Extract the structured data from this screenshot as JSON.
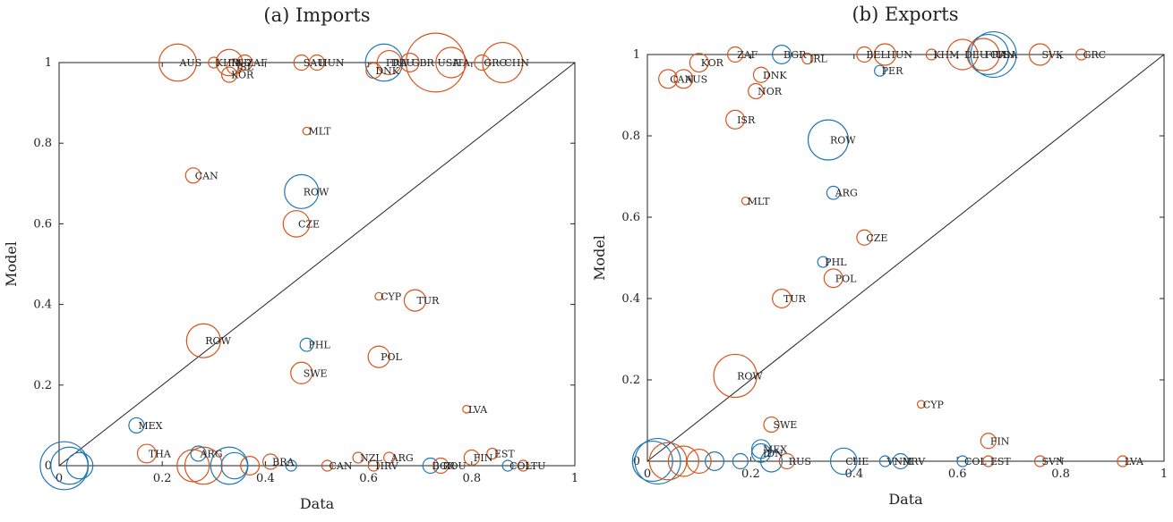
{
  "chart_data": [
    {
      "type": "scatter",
      "title": "(a) Imports",
      "xlabel": "Data",
      "ylabel": "Model",
      "xlim": [
        0,
        1
      ],
      "ylim": [
        0,
        1
      ],
      "xticks": [
        "0",
        "0.2",
        "0.4",
        "0.6",
        "0.8",
        "1"
      ],
      "yticks": [
        "0",
        "0.2",
        "0.4",
        "0.6",
        "0.8",
        "1"
      ],
      "reference_line": "y = x",
      "colors": {
        "blue": "#1f77b4",
        "orange": "#d95319"
      },
      "points": [
        {
          "label": "AUS",
          "x": 0.23,
          "y": 1.0,
          "color": "orange",
          "size": 12
        },
        {
          "label": "KHM",
          "x": 0.3,
          "y": 1.0,
          "color": "orange",
          "size": 1
        },
        {
          "label": "IND",
          "x": 0.33,
          "y": 1.0,
          "color": "orange",
          "size": 6
        },
        {
          "label": "ISL",
          "x": 0.34,
          "y": 0.99,
          "color": "orange",
          "size": 2
        },
        {
          "label": "ZAF",
          "x": 0.36,
          "y": 1.0,
          "color": "orange",
          "size": 2
        },
        {
          "label": "KOR",
          "x": 0.33,
          "y": 0.97,
          "color": "orange",
          "size": 2
        },
        {
          "label": "SAU",
          "x": 0.47,
          "y": 1.0,
          "color": "orange",
          "size": 2
        },
        {
          "label": "HUN",
          "x": 0.5,
          "y": 1.0,
          "color": "orange",
          "size": 2
        },
        {
          "label": "DNK",
          "x": 0.61,
          "y": 0.98,
          "color": "orange",
          "size": 2
        },
        {
          "label": "FRA",
          "x": 0.63,
          "y": 1.0,
          "color": "blue",
          "size": 12
        },
        {
          "label": "DEU",
          "x": 0.64,
          "y": 1.0,
          "color": "orange",
          "size": 5
        },
        {
          "label": "GBR",
          "x": 0.68,
          "y": 1.0,
          "color": "orange",
          "size": 3
        },
        {
          "label": "USA",
          "x": 0.73,
          "y": 1.0,
          "color": "orange",
          "size": 30
        },
        {
          "label": "ITA",
          "x": 0.76,
          "y": 1.0,
          "color": "orange",
          "size": 8
        },
        {
          "label": "GRC",
          "x": 0.82,
          "y": 1.0,
          "color": "orange",
          "size": 2
        },
        {
          "label": "CHN",
          "x": 0.86,
          "y": 1.0,
          "color": "orange",
          "size": 14
        },
        {
          "label": "MLT",
          "x": 0.48,
          "y": 0.83,
          "color": "orange",
          "size": 0.5
        },
        {
          "label": "CAN",
          "x": 0.26,
          "y": 0.72,
          "color": "orange",
          "size": 2
        },
        {
          "label": "ROW",
          "x": 0.47,
          "y": 0.68,
          "color": "blue",
          "size": 10
        },
        {
          "label": "CZE",
          "x": 0.46,
          "y": 0.6,
          "color": "orange",
          "size": 6
        },
        {
          "label": "CYP",
          "x": 0.62,
          "y": 0.42,
          "color": "orange",
          "size": 0.5
        },
        {
          "label": "TUR",
          "x": 0.69,
          "y": 0.41,
          "color": "orange",
          "size": 4
        },
        {
          "label": "ROW",
          "x": 0.28,
          "y": 0.31,
          "color": "orange",
          "size": 10
        },
        {
          "label": "PHL",
          "x": 0.48,
          "y": 0.3,
          "color": "blue",
          "size": 1.5
        },
        {
          "label": "POL",
          "x": 0.62,
          "y": 0.27,
          "color": "orange",
          "size": 4
        },
        {
          "label": "SWE",
          "x": 0.47,
          "y": 0.23,
          "color": "orange",
          "size": 4
        },
        {
          "label": "LVA",
          "x": 0.79,
          "y": 0.14,
          "color": "orange",
          "size": 0.5
        },
        {
          "label": "MEX",
          "x": 0.15,
          "y": 0.1,
          "color": "blue",
          "size": 2
        },
        {
          "label": "THA",
          "x": 0.17,
          "y": 0.03,
          "color": "orange",
          "size": 3
        },
        {
          "label": "ARG",
          "x": 0.27,
          "y": 0.03,
          "color": "blue",
          "size": 2
        },
        {
          "label": "BRA",
          "x": 0.41,
          "y": 0.01,
          "color": "orange",
          "size": 2
        },
        {
          "label": "NZL",
          "x": 0.58,
          "y": 0.02,
          "color": "orange",
          "size": 1
        },
        {
          "label": "ARG",
          "x": 0.64,
          "y": 0.02,
          "color": "orange",
          "size": 1
        },
        {
          "label": "EST",
          "x": 0.84,
          "y": 0.03,
          "color": "orange",
          "size": 1
        },
        {
          "label": "FIN",
          "x": 0.8,
          "y": 0.02,
          "color": "orange",
          "size": 2
        },
        {
          "label": "COL",
          "x": 0.87,
          "y": 0.0,
          "color": "blue",
          "size": 1
        },
        {
          "label": "LTU",
          "x": 0.9,
          "y": 0.0,
          "color": "orange",
          "size": 1
        },
        {
          "label": "CAN",
          "x": 0.52,
          "y": 0.0,
          "color": "orange",
          "size": 1
        },
        {
          "label": "HRV",
          "x": 0.61,
          "y": 0.0,
          "color": "orange",
          "size": 1
        },
        {
          "label": "BGR",
          "x": 0.72,
          "y": 0.0,
          "color": "blue",
          "size": 2
        },
        {
          "label": "ROU",
          "x": 0.74,
          "y": 0.0,
          "color": "orange",
          "size": 2
        },
        {
          "label": "",
          "x": 0.01,
          "y": 0.0,
          "color": "blue",
          "size": 20
        },
        {
          "label": "",
          "x": 0.02,
          "y": 0.0,
          "color": "blue",
          "size": 12
        },
        {
          "label": "",
          "x": 0.04,
          "y": 0.0,
          "color": "blue",
          "size": 6
        },
        {
          "label": "",
          "x": 0.26,
          "y": 0.0,
          "color": "orange",
          "size": 9
        },
        {
          "label": "",
          "x": 0.28,
          "y": 0.0,
          "color": "orange",
          "size": 12
        },
        {
          "label": "",
          "x": 0.33,
          "y": 0.0,
          "color": "blue",
          "size": 12
        },
        {
          "label": "",
          "x": 0.34,
          "y": 0.0,
          "color": "blue",
          "size": 6
        },
        {
          "label": "",
          "x": 0.37,
          "y": 0.0,
          "color": "orange",
          "size": 3
        },
        {
          "label": "",
          "x": 0.45,
          "y": 0.0,
          "color": "blue",
          "size": 1
        }
      ]
    },
    {
      "type": "scatter",
      "title": "(b) Exports",
      "xlabel": "Data",
      "ylabel": "Model",
      "xlim": [
        0,
        1
      ],
      "ylim": [
        0,
        1
      ],
      "xticks": [
        "0",
        "0.2",
        "0.4",
        "0.6",
        "0.8",
        "1"
      ],
      "yticks": [
        "0",
        "0.2",
        "0.4",
        "0.6",
        "0.8",
        "1"
      ],
      "reference_line": "y = x",
      "colors": {
        "blue": "#1f77b4",
        "orange": "#d95319"
      },
      "points": [
        {
          "label": "ZAF",
          "x": 0.17,
          "y": 1.0,
          "color": "orange",
          "size": 2
        },
        {
          "label": "BGR",
          "x": 0.26,
          "y": 1.0,
          "color": "blue",
          "size": 3
        },
        {
          "label": "IRL",
          "x": 0.31,
          "y": 0.99,
          "color": "orange",
          "size": 1
        },
        {
          "label": "BEL",
          "x": 0.42,
          "y": 1.0,
          "color": "orange",
          "size": 2
        },
        {
          "label": "HUN",
          "x": 0.46,
          "y": 1.0,
          "color": "orange",
          "size": 4
        },
        {
          "label": "KHM",
          "x": 0.55,
          "y": 1.0,
          "color": "orange",
          "size": 1
        },
        {
          "label": "DEU",
          "x": 0.61,
          "y": 1.0,
          "color": "orange",
          "size": 8
        },
        {
          "label": "CHN",
          "x": 0.66,
          "y": 1.0,
          "color": "blue",
          "size": 14
        },
        {
          "label": "FRA",
          "x": 0.65,
          "y": 1.0,
          "color": "orange",
          "size": 9
        },
        {
          "label": "USA",
          "x": 0.67,
          "y": 1.0,
          "color": "blue",
          "size": 18
        },
        {
          "label": "SVK",
          "x": 0.76,
          "y": 1.0,
          "color": "orange",
          "size": 4
        },
        {
          "label": "GRC",
          "x": 0.84,
          "y": 1.0,
          "color": "orange",
          "size": 1
        },
        {
          "label": "KOR",
          "x": 0.1,
          "y": 0.98,
          "color": "orange",
          "size": 3
        },
        {
          "label": "DNK",
          "x": 0.22,
          "y": 0.95,
          "color": "orange",
          "size": 2
        },
        {
          "label": "PER",
          "x": 0.45,
          "y": 0.96,
          "color": "blue",
          "size": 1
        },
        {
          "label": "CAN",
          "x": 0.04,
          "y": 0.94,
          "color": "orange",
          "size": 3
        },
        {
          "label": "AUS",
          "x": 0.07,
          "y": 0.94,
          "color": "orange",
          "size": 3
        },
        {
          "label": "NOR",
          "x": 0.21,
          "y": 0.91,
          "color": "orange",
          "size": 2
        },
        {
          "label": "ISR",
          "x": 0.17,
          "y": 0.84,
          "color": "orange",
          "size": 3
        },
        {
          "label": "ROW",
          "x": 0.35,
          "y": 0.79,
          "color": "blue",
          "size": 14
        },
        {
          "label": "ARG",
          "x": 0.36,
          "y": 0.66,
          "color": "blue",
          "size": 1.5
        },
        {
          "label": "MLT",
          "x": 0.19,
          "y": 0.64,
          "color": "orange",
          "size": 0.5
        },
        {
          "label": "CZE",
          "x": 0.42,
          "y": 0.55,
          "color": "orange",
          "size": 2
        },
        {
          "label": "PHL",
          "x": 0.34,
          "y": 0.49,
          "color": "blue",
          "size": 1
        },
        {
          "label": "POL",
          "x": 0.36,
          "y": 0.45,
          "color": "orange",
          "size": 3
        },
        {
          "label": "TUR",
          "x": 0.26,
          "y": 0.4,
          "color": "orange",
          "size": 3
        },
        {
          "label": "ROW",
          "x": 0.17,
          "y": 0.21,
          "color": "orange",
          "size": 16
        },
        {
          "label": "CYP",
          "x": 0.53,
          "y": 0.14,
          "color": "orange",
          "size": 0.5
        },
        {
          "label": "SWE",
          "x": 0.24,
          "y": 0.09,
          "color": "orange",
          "size": 2
        },
        {
          "label": "FIN",
          "x": 0.66,
          "y": 0.05,
          "color": "orange",
          "size": 2
        },
        {
          "label": "MEX",
          "x": 0.22,
          "y": 0.03,
          "color": "blue",
          "size": 3
        },
        {
          "label": "IDN",
          "x": 0.22,
          "y": 0.02,
          "color": "blue",
          "size": 3
        },
        {
          "label": "RUS",
          "x": 0.27,
          "y": 0.0,
          "color": "orange",
          "size": 2
        },
        {
          "label": "CHE",
          "x": 0.38,
          "y": 0.0,
          "color": "blue",
          "size": 6
        },
        {
          "label": "VNM",
          "x": 0.46,
          "y": 0.0,
          "color": "blue",
          "size": 1
        },
        {
          "label": "HRV",
          "x": 0.49,
          "y": 0.0,
          "color": "blue",
          "size": 2
        },
        {
          "label": "COL",
          "x": 0.61,
          "y": 0.0,
          "color": "blue",
          "size": 1
        },
        {
          "label": "EST",
          "x": 0.66,
          "y": 0.0,
          "color": "orange",
          "size": 1
        },
        {
          "label": "SVN",
          "x": 0.76,
          "y": 0.0,
          "color": "orange",
          "size": 1
        },
        {
          "label": "LVA",
          "x": 0.92,
          "y": 0.0,
          "color": "orange",
          "size": 1
        },
        {
          "label": "",
          "x": 0.01,
          "y": 0.0,
          "color": "blue",
          "size": 14
        },
        {
          "label": "",
          "x": 0.02,
          "y": 0.0,
          "color": "blue",
          "size": 18
        },
        {
          "label": "",
          "x": 0.04,
          "y": 0.0,
          "color": "orange",
          "size": 12
        },
        {
          "label": "",
          "x": 0.07,
          "y": 0.0,
          "color": "orange",
          "size": 8
        },
        {
          "label": "",
          "x": 0.1,
          "y": 0.0,
          "color": "orange",
          "size": 5
        },
        {
          "label": "",
          "x": 0.13,
          "y": 0.0,
          "color": "blue",
          "size": 3
        },
        {
          "label": "",
          "x": 0.18,
          "y": 0.0,
          "color": "blue",
          "size": 2
        },
        {
          "label": "",
          "x": 0.24,
          "y": 0.0,
          "color": "blue",
          "size": 4
        }
      ]
    }
  ]
}
